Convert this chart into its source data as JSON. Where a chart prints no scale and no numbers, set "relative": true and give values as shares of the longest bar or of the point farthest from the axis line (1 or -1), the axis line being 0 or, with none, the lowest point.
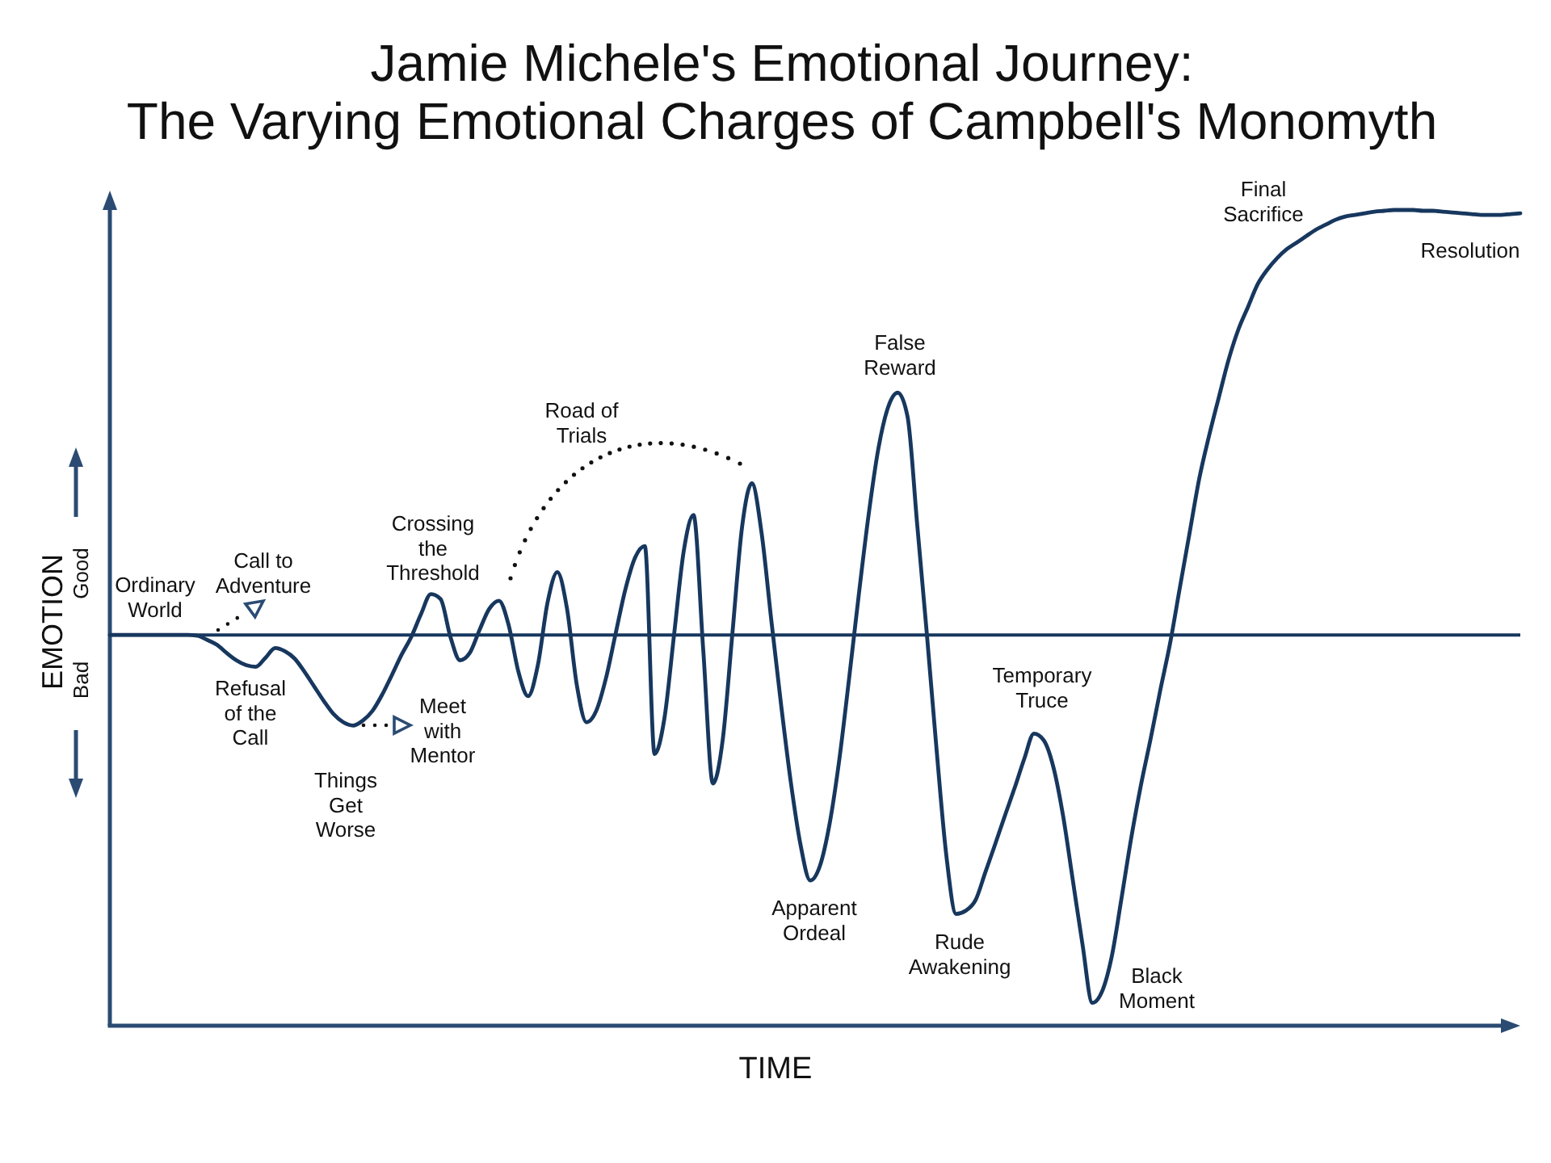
{
  "chart_data": {
    "type": "line",
    "title": "Jamie Michele's Emotional Journey:",
    "subtitle": "The Varying Emotional Charges of Campbell's Monomyth",
    "xlabel": "TIME",
    "ylabel": "EMOTION",
    "relative": true,
    "color": "#17375e",
    "categories": [
      null,
      null,
      null,
      null,
      null,
      null,
      null,
      null,
      null,
      null,
      null,
      null,
      null,
      null,
      null,
      null,
      null,
      null,
      null,
      null,
      null,
      null,
      null,
      null,
      null,
      null,
      null,
      null,
      null,
      null,
      null,
      null,
      null,
      null,
      null,
      null,
      null,
      null,
      null,
      null,
      null,
      null,
      null,
      null,
      null,
      null,
      null,
      null,
      null,
      null,
      null,
      null,
      null,
      null,
      null,
      null,
      null,
      null,
      null,
      null,
      null,
      null,
      null,
      null,
      null,
      null,
      null,
      null,
      null,
      null,
      null,
      null,
      null,
      null,
      null,
      null,
      null,
      null,
      null,
      null,
      null,
      null,
      null,
      null,
      null,
      null,
      null,
      null,
      null,
      null,
      null,
      null,
      null,
      null,
      null,
      null,
      null,
      null,
      null,
      null,
      null,
      null,
      null,
      null,
      null,
      null,
      null,
      null,
      null,
      null,
      null,
      null,
      null,
      null,
      null,
      null,
      null,
      null,
      null,
      null,
      null,
      null,
      null,
      null,
      null,
      null,
      null,
      null,
      null,
      null,
      null,
      null,
      null,
      null,
      null,
      null,
      null,
      null,
      null,
      null,
      null,
      null,
      null,
      null,
      null,
      null
    ],
    "values": [
      0.479,
      0.479,
      0.479,
      0.479,
      0.479,
      0.479,
      0.479,
      0.479,
      0.479,
      0.478,
      0.473,
      0.467,
      0.457,
      0.448,
      0.442,
      0.44,
      0.451,
      0.463,
      0.459,
      0.45,
      0.434,
      0.416,
      0.398,
      0.382,
      0.372,
      0.368,
      0.374,
      0.386,
      0.406,
      0.43,
      0.455,
      0.477,
      0.505,
      0.529,
      0.523,
      0.477,
      0.448,
      0.457,
      0.485,
      0.511,
      0.521,
      0.491,
      0.434,
      0.404,
      0.442,
      0.519,
      0.556,
      0.511,
      0.418,
      0.372,
      0.386,
      0.426,
      0.481,
      0.535,
      0.574,
      0.588,
      0.333,
      0.376,
      0.479,
      0.582,
      0.626,
      0.461,
      0.297,
      0.35,
      0.481,
      0.612,
      0.665,
      0.604,
      0.497,
      0.394,
      0.299,
      0.222,
      0.178,
      0.196,
      0.248,
      0.327,
      0.426,
      0.529,
      0.626,
      0.707,
      0.758,
      0.776,
      0.747,
      0.614,
      0.479,
      0.337,
      0.208,
      0.137,
      0.141,
      0.154,
      0.188,
      0.222,
      0.257,
      0.291,
      0.327,
      0.358,
      0.35,
      0.317,
      0.257,
      0.178,
      0.099,
      0.028,
      0.042,
      0.085,
      0.156,
      0.23,
      0.295,
      0.352,
      0.412,
      0.469,
      0.537,
      0.604,
      0.671,
      0.723,
      0.77,
      0.816,
      0.853,
      0.881,
      0.909,
      0.927,
      0.941,
      0.952,
      0.96,
      0.968,
      0.976,
      0.982,
      0.988,
      0.992,
      0.994,
      0.996,
      0.998,
      0.999,
      1,
      1,
      1,
      0.999,
      0.999,
      0.998,
      0.997,
      0.996,
      0.995,
      0.994,
      0.994,
      0.994,
      0.995,
      0.996
    ],
    "ref_lines": [
      {
        "axis": "y",
        "value": 0.479,
        "color": "#17375e"
      }
    ],
    "annotations": [
      "Good",
      "Bad",
      "Ordinary\nWorld",
      "Call to\nAdventure",
      "Refusal\nof the\nCall",
      "Things\nGet\nWorse",
      "Meet\nwith\nMentor",
      "Crossing\nthe\nThreshold",
      "Road of\nTrials",
      "False\nReward",
      "Apparent\nOrdeal",
      "Rude\nAwakening",
      "Temporary\nTruce",
      "Black\nMoment",
      "Final\nSacrifice",
      "Resolution"
    ]
  }
}
